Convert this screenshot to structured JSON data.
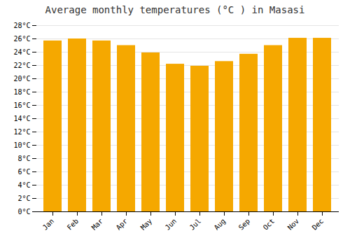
{
  "chart_data": {
    "type": "bar",
    "title": "Average monthly temperatures (°C ) in Masasi",
    "categories": [
      "Jan",
      "Feb",
      "Mar",
      "Apr",
      "May",
      "Jun",
      "Jul",
      "Aug",
      "Sep",
      "Oct",
      "Nov",
      "Dec"
    ],
    "values": [
      25.7,
      26.0,
      25.7,
      25.0,
      23.9,
      22.2,
      21.9,
      22.6,
      23.7,
      25.0,
      26.1,
      26.1
    ],
    "color": "#F5A800",
    "ylim": [
      0,
      28
    ],
    "yticks": [
      {
        "value": 0,
        "label": "0°C"
      },
      {
        "value": 2,
        "label": "2°C"
      },
      {
        "value": 4,
        "label": "4°C"
      },
      {
        "value": 6,
        "label": "6°C"
      },
      {
        "value": 8,
        "label": "8°C"
      },
      {
        "value": 10,
        "label": "10°C"
      },
      {
        "value": 12,
        "label": "12°C"
      },
      {
        "value": 14,
        "label": "14°C"
      },
      {
        "value": 16,
        "label": "16°C"
      },
      {
        "value": 18,
        "label": "18°C"
      },
      {
        "value": 20,
        "label": "20°C"
      },
      {
        "value": 22,
        "label": "22°C"
      },
      {
        "value": 24,
        "label": "24°C"
      },
      {
        "value": 26,
        "label": "26°C"
      },
      {
        "value": 28,
        "label": "28°C"
      }
    ],
    "grid": true
  }
}
